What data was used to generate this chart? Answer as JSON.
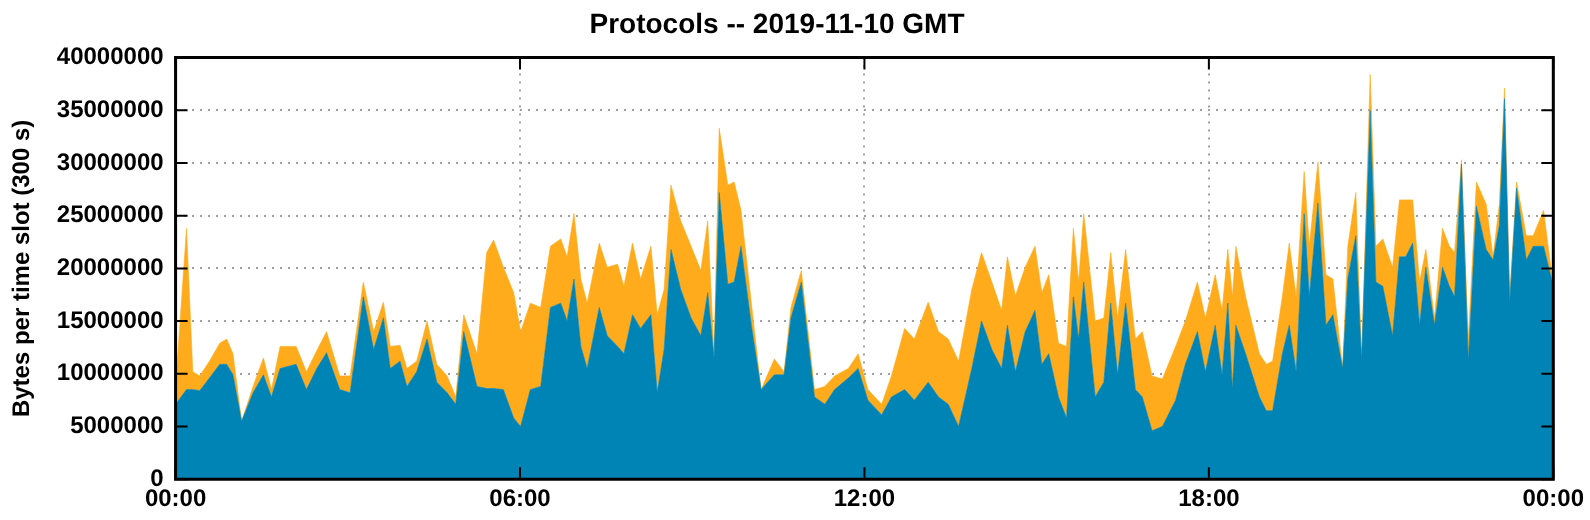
{
  "chart_data": {
    "type": "area",
    "stacked": true,
    "title": "Protocols -- 2019-11-10 GMT",
    "ylabel": "Bytes per time slot (300 s)",
    "x": [
      0,
      0.19,
      0.3,
      0.42,
      0.59,
      0.77,
      0.89,
      1.0,
      1.15,
      1.35,
      1.53,
      1.67,
      1.82,
      2.1,
      2.28,
      2.46,
      2.63,
      2.86,
      3.04,
      3.27,
      3.45,
      3.62,
      3.74,
      3.91,
      4.03,
      4.2,
      4.38,
      4.55,
      4.73,
      4.88,
      5.02,
      5.25,
      5.42,
      5.54,
      5.71,
      5.89,
      6.01,
      6.18,
      6.36,
      6.53,
      6.71,
      6.82,
      6.94,
      7.06,
      7.17,
      7.38,
      7.52,
      7.7,
      7.81,
      7.96,
      8.1,
      8.28,
      8.39,
      8.51,
      8.63,
      8.8,
      8.98,
      9.15,
      9.27,
      9.38,
      9.47,
      9.62,
      9.73,
      9.85,
      10.03,
      10.2,
      10.43,
      10.6,
      10.72,
      10.9,
      11.13,
      11.31,
      11.48,
      11.72,
      11.89,
      12.06,
      12.3,
      12.47,
      12.7,
      12.87,
      13.11,
      13.29,
      13.46,
      13.64,
      13.87,
      14.04,
      14.22,
      14.39,
      14.49,
      14.63,
      14.8,
      14.97,
      15.09,
      15.21,
      15.38,
      15.52,
      15.64,
      15.73,
      15.82,
      16.02,
      16.17,
      16.29,
      16.41,
      16.55,
      16.72,
      16.84,
      17.01,
      17.19,
      17.42,
      17.59,
      17.8,
      17.94,
      18.11,
      18.23,
      18.33,
      18.41,
      18.47,
      18.64,
      18.88,
      19.0,
      19.11,
      19.28,
      19.4,
      19.52,
      19.66,
      19.75,
      19.9,
      20.04,
      20.16,
      20.33,
      20.42,
      20.56,
      20.66,
      20.81,
      20.91,
      21.03,
      21.2,
      21.32,
      21.43,
      21.55,
      21.67,
      21.78,
      21.93,
      22.07,
      22.19,
      22.28,
      22.4,
      22.52,
      22.66,
      22.83,
      22.95,
      23.06,
      23.15,
      23.24,
      23.36,
      23.53,
      23.65,
      23.83,
      24.0
    ],
    "series": [
      {
        "color": "#0083b5",
        "values": [
          7100000,
          8500000,
          8500000,
          8400000,
          9600000,
          10900000,
          10900000,
          9900000,
          5500000,
          8200000,
          9900000,
          7800000,
          10500000,
          10900000,
          8500000,
          10500000,
          12000000,
          8500000,
          8200000,
          17300000,
          12300000,
          15300000,
          10500000,
          11200000,
          8800000,
          10200000,
          13300000,
          9200000,
          8200000,
          7100000,
          14000000,
          8800000,
          8600000,
          8600000,
          8500000,
          5800000,
          5000000,
          8500000,
          8800000,
          16300000,
          16700000,
          15000000,
          19000000,
          12600000,
          10500000,
          16300000,
          13600000,
          12600000,
          11900000,
          15600000,
          14300000,
          15600000,
          8200000,
          12300000,
          21800000,
          18000000,
          15300000,
          13600000,
          17700000,
          11500000,
          27200000,
          18500000,
          18700000,
          22100000,
          14600000,
          8500000,
          9900000,
          9900000,
          15300000,
          18700000,
          7800000,
          7100000,
          8500000,
          9600000,
          10500000,
          7500000,
          6100000,
          7800000,
          8500000,
          7500000,
          9200000,
          7800000,
          7100000,
          5000000,
          10500000,
          15000000,
          12300000,
          10500000,
          14600000,
          10200000,
          14000000,
          16000000,
          10900000,
          11900000,
          7800000,
          5800000,
          17300000,
          13300000,
          18700000,
          7800000,
          9200000,
          16700000,
          9900000,
          16700000,
          8500000,
          7800000,
          4600000,
          5000000,
          7500000,
          10900000,
          14000000,
          10200000,
          14600000,
          9900000,
          16700000,
          8500000,
          14600000,
          11900000,
          7800000,
          6500000,
          6500000,
          11900000,
          14600000,
          10200000,
          25200000,
          17300000,
          26200000,
          14600000,
          15600000,
          10500000,
          19000000,
          23100000,
          11200000,
          35000000,
          18700000,
          18300000,
          13600000,
          21100000,
          21100000,
          22400000,
          14600000,
          20100000,
          14600000,
          20100000,
          18300000,
          17300000,
          29900000,
          11200000,
          25900000,
          21800000,
          20800000,
          24100000,
          36100000,
          16700000,
          27600000,
          20800000,
          22100000,
          22100000,
          18300000
        ]
      },
      {
        "color": "#ffab1b",
        "values": [
          1700000,
          15300000,
          1700000,
          1400000,
          1600000,
          2000000,
          2400000,
          2000000,
          0,
          600000,
          1600000,
          700000,
          2100000,
          1700000,
          1700000,
          1700000,
          2000000,
          1300000,
          1600000,
          1400000,
          1700000,
          1500000,
          2100000,
          1500000,
          1700000,
          1000000,
          1700000,
          1700000,
          1600000,
          700000,
          1600000,
          3100000,
          12900000,
          14100000,
          11600000,
          11900000,
          9000000,
          8200000,
          7500000,
          5800000,
          6100000,
          6100000,
          6200000,
          6400000,
          6200000,
          6100000,
          6500000,
          7800000,
          6400000,
          6800000,
          4700000,
          6500000,
          7400000,
          5700000,
          6100000,
          6500000,
          6800000,
          6200000,
          6800000,
          400000,
          6100000,
          9400000,
          9500000,
          3400000,
          2100000,
          0,
          1500000,
          300000,
          1000000,
          1100000,
          700000,
          1700000,
          1300000,
          900000,
          1400000,
          1000000,
          1000000,
          2000000,
          5800000,
          5800000,
          7600000,
          6200000,
          6200000,
          6200000,
          7500000,
          6500000,
          6400000,
          5500000,
          6500000,
          7200000,
          6100000,
          6100000,
          6800000,
          7500000,
          5100000,
          6800000,
          6500000,
          5400000,
          6500000,
          7200000,
          6100000,
          4800000,
          5400000,
          5100000,
          4800000,
          6200000,
          5200000,
          4500000,
          5100000,
          4100000,
          4700000,
          5100000,
          4800000,
          6100000,
          5100000,
          8800000,
          7500000,
          5400000,
          4100000,
          4400000,
          4700000,
          5400000,
          7800000,
          7100000,
          4000000,
          4800000,
          3900000,
          4800000,
          3400000,
          0,
          3100000,
          4100000,
          300000,
          3400000,
          3400000,
          4500000,
          6500000,
          5400000,
          5400000,
          4100000,
          4100000,
          1700000,
          700000,
          3700000,
          3800000,
          4200000,
          400000,
          2100000,
          2300000,
          4300000,
          300000,
          2000000,
          1000000,
          600000,
          600000,
          2300000,
          1000000,
          3400000,
          0
        ]
      }
    ],
    "xlim": [
      0,
      24
    ],
    "xticks": [
      {
        "value": 0,
        "label": "00:00"
      },
      {
        "value": 6,
        "label": "06:00"
      },
      {
        "value": 12,
        "label": "12:00"
      },
      {
        "value": 18,
        "label": "18:00"
      },
      {
        "value": 24,
        "label": "00:00"
      }
    ],
    "ylim": [
      0,
      40000000
    ],
    "yticks": [
      0,
      5000000,
      10000000,
      15000000,
      20000000,
      25000000,
      30000000,
      35000000,
      40000000
    ],
    "grid": true,
    "legend": false
  }
}
